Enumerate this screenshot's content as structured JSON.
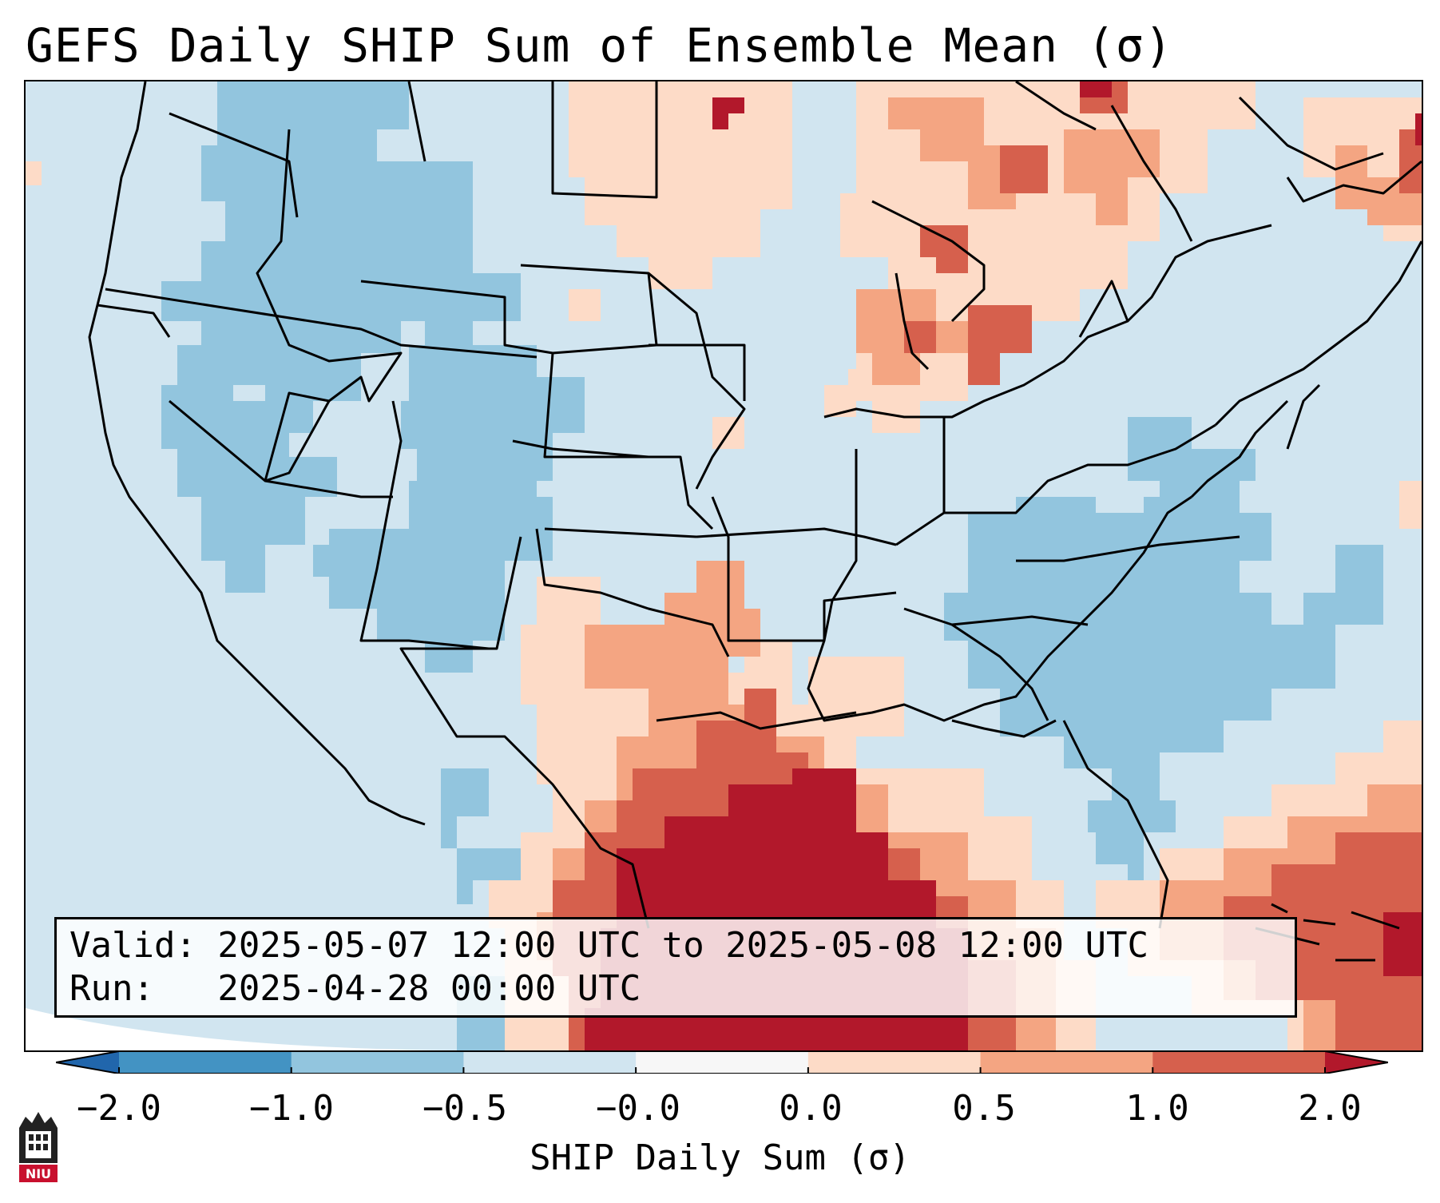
{
  "title": "GEFS Daily SHIP Sum of Ensemble Mean (σ)",
  "info": {
    "valid_line": "Valid: 2025-05-07 12:00 UTC to 2025-05-08 12:00 UTC",
    "run_line": "Run:   2025-04-28 00:00 UTC"
  },
  "colorbar": {
    "label": "SHIP Daily Sum (σ)",
    "ticks": [
      "−2.0",
      "−1.0",
      "−0.5",
      "−0.0",
      "0.0",
      "0.5",
      "1.0",
      "2.0"
    ],
    "bins": [
      {
        "range": "< -2.0",
        "color": "#2166ac"
      },
      {
        "range": "-2.0 to -1.0",
        "color": "#4393c3"
      },
      {
        "range": "-1.0 to -0.5",
        "color": "#92c5de"
      },
      {
        "range": "-0.5 to -0.0",
        "color": "#d1e5f0"
      },
      {
        "range": "-0.0 to 0.0",
        "color": "#f7f7f7"
      },
      {
        "range": "0.0 to 0.5",
        "color": "#fddbc7"
      },
      {
        "range": "0.5 to 1.0",
        "color": "#f4a582"
      },
      {
        "range": "1.0 to 2.0",
        "color": "#d6604d"
      },
      {
        "range": "> 2.0",
        "color": "#b2182b"
      }
    ]
  },
  "logo": {
    "icon": "niu-logo-icon",
    "text": "NIU"
  }
}
